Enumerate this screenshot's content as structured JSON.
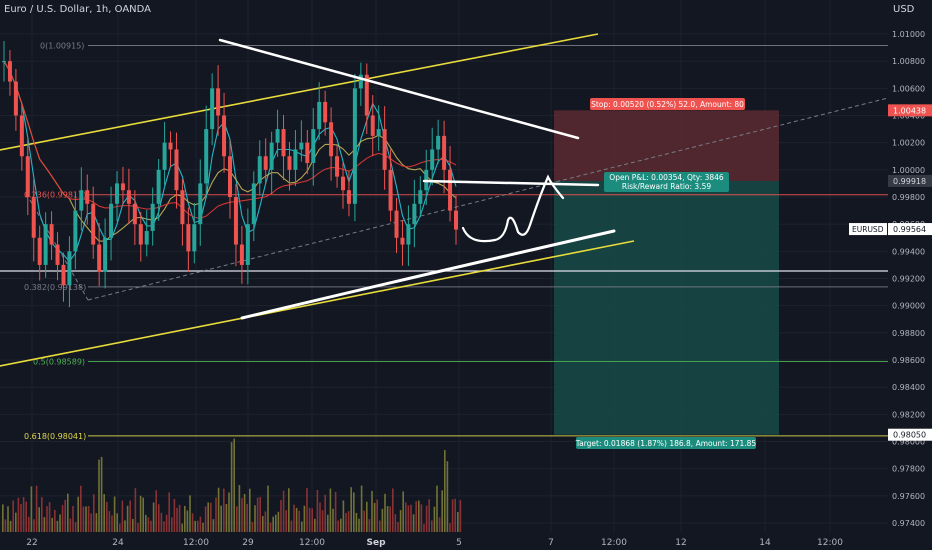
{
  "header": {
    "symbol_title": "Euro / U.S. Dollar, 1h, OANDA",
    "currency": "USD"
  },
  "colors": {
    "background": "#131722",
    "up": "#26a69a",
    "down": "#ef5350",
    "ma_teal": "#26c6da",
    "ma_yellow": "#c9b458",
    "ma_red": "#e53935",
    "channel": "#e8dc3c",
    "fib_red": "#ef5350",
    "fib_green": "#4caf50",
    "fib_grey": "#787b86",
    "fib_yellow": "#e0d84a",
    "stop_zone": "#5c2a30",
    "target_zone": "#174a46"
  },
  "price_axis": {
    "ticks": [
      "1.01000",
      "1.00800",
      "1.00600",
      "1.00400",
      "1.00200",
      "1.00000",
      "0.99800",
      "0.99600",
      "0.99400",
      "0.99200",
      "0.99000",
      "0.98800",
      "0.98600",
      "0.98400",
      "0.98200",
      "0.98000",
      "0.97800",
      "0.97600",
      "0.97400"
    ],
    "badges": [
      {
        "label": "1.00438",
        "price": 1.00438,
        "bg": "#ef5350",
        "fg": "#ffffff"
      },
      {
        "label": "0.99918",
        "price": 0.99918,
        "bg": "#363a45",
        "fg": "#d1d4dc"
      },
      {
        "label": "0.99564",
        "price": 0.99564,
        "bg": "#ffffff",
        "fg": "#131722"
      },
      {
        "label": "0.98050",
        "price": 0.9805,
        "bg": "#ffffff",
        "fg": "#131722"
      }
    ],
    "symbol_tag": "EURUSD"
  },
  "time_axis": {
    "labels": [
      "22",
      "24",
      "12:00",
      "29",
      "12:00",
      "Sep",
      "5",
      "7",
      "12:00",
      "12",
      "14",
      "12:00"
    ]
  },
  "fib_levels": [
    {
      "label": "0(1.00915)",
      "price": 1.00915
    },
    {
      "label": "0.236(0.99817)",
      "price": 0.99817
    },
    {
      "label": "0.382(0.99138)",
      "price": 0.99138
    },
    {
      "label": "0.5(0.98589)",
      "price": 0.98589
    },
    {
      "label": "0.618(0.98041)",
      "price": 0.98041
    }
  ],
  "position": {
    "stop_label": "Stop: 0.00520 (0.52%) 52.0, Amount: 80",
    "pnl_label": "Open P&L: 0.00354, Qty: 3846",
    "rr_label": "Risk/Reward Ratio: 3.59",
    "target_label": "Target: 0.01868 (1.87%) 186.8, Amount: 171.85",
    "stop_price": 1.00438,
    "entry_price": 0.99918,
    "target_price": 0.9805
  },
  "chart_data": {
    "type": "candlestick",
    "title": "Euro / U.S. Dollar, 1h, OANDA",
    "y_range": [
      0.9735,
      1.0115
    ],
    "x_tick_labels": [
      "22",
      "24",
      "12:00",
      "29",
      "12:00",
      "Sep",
      "5",
      "7",
      "12:00",
      "12",
      "14",
      "12:00"
    ],
    "current_price": 0.99564,
    "series": [
      {
        "name": "EURUSD",
        "close_path": [
          1.008,
          1.0065,
          1.004,
          1.001,
          0.998,
          0.995,
          0.993,
          0.996,
          0.9945,
          0.993,
          0.9915,
          0.994,
          0.997,
          0.9985,
          0.9975,
          0.9945,
          0.9925,
          0.995,
          0.9975,
          0.999,
          0.9985,
          0.9975,
          0.996,
          0.9945,
          0.9955,
          0.9975,
          1.0,
          1.002,
          1.0015,
          0.9985,
          0.996,
          0.994,
          0.996,
          0.999,
          1.003,
          1.006,
          1.004,
          1.001,
          0.998,
          0.9945,
          0.993,
          0.996,
          0.999,
          1.001,
          1.0,
          1.002,
          1.003,
          1.001,
          1.0,
          1.0015,
          1.002,
          1.0005,
          1.003,
          1.005,
          1.0035,
          1.001,
          0.9995,
          0.9985,
          0.9975,
          1.006,
          1.007,
          1.004,
          1.0025,
          1.003,
          1.0,
          0.997,
          0.995,
          0.9945,
          0.996,
          0.9975,
          0.9985,
          1.0,
          1.0015,
          1.0025,
          1.0,
          0.997,
          0.9956
        ]
      }
    ]
  }
}
